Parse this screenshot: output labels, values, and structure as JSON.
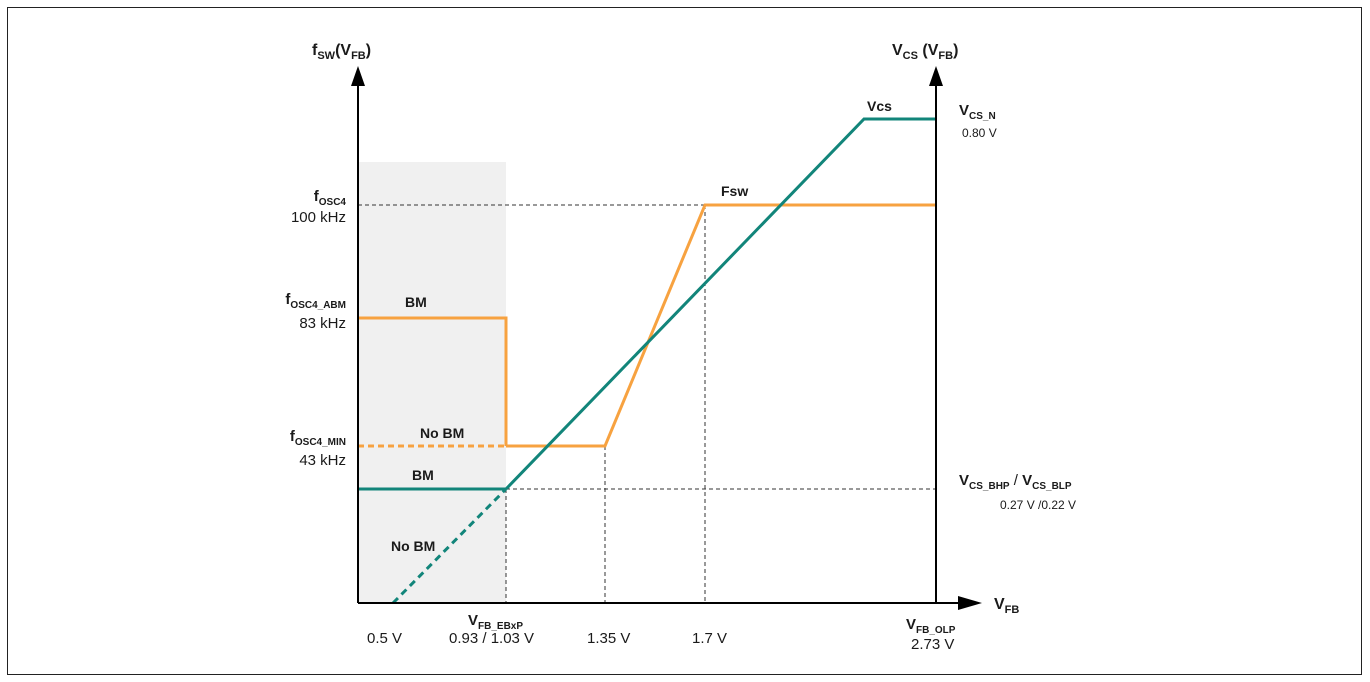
{
  "colors": {
    "frequency": "#F7A240",
    "current_sense": "#12857A",
    "vcs_label": "#1D7ACC",
    "shade": "#F0F0F0",
    "axis": "#000000",
    "guide": "#333333"
  },
  "left_axis": {
    "label_main": "f",
    "label_sub": "SW",
    "label_paren_open": "(V",
    "label_paren_sub": "FB",
    "label_paren_close": ")"
  },
  "right_axis": {
    "label_main": "V",
    "label_sub": "CS",
    "label_paren_open": " (V",
    "label_paren_sub": "FB",
    "label_paren_close": ")"
  },
  "x_axis": {
    "label_main": "V",
    "label_sub": "FB"
  },
  "y_levels": [
    {
      "name_main": "f",
      "name_sub": "OSC4",
      "value": "100 kHz"
    },
    {
      "name_main": "f",
      "name_sub": "OSC4_ABM",
      "value": "83 kHz"
    },
    {
      "name_main": "f",
      "name_sub": "OSC4_MIN",
      "value": "43 kHz"
    }
  ],
  "right_levels": [
    {
      "name_main": "V",
      "name_sub": "CS_N",
      "value": "0.80 V"
    },
    {
      "name_main": "V",
      "name_sub": "CS_BHP",
      "name_sep": " / ",
      "name2_main": "V",
      "name2_sub": "CS_BLP",
      "value": "0.27 V /0.22 V"
    }
  ],
  "x_ticks": [
    {
      "value": "0.5 V"
    },
    {
      "name_main": "V",
      "name_sub": "FB_EBxP",
      "value": "0.93 / 1.03 V"
    },
    {
      "value": "1.35 V"
    },
    {
      "value": "1.7 V"
    },
    {
      "name_main": "V",
      "name_sub": "FB_OLP",
      "value": "2.73 V"
    }
  ],
  "curve_labels": {
    "fsw": "Fsw",
    "vcs": "Vcs",
    "bm_freq": "BM",
    "nobm_freq": "No BM",
    "bm_vcs": "BM",
    "nobm_vcs": "No BM"
  }
}
